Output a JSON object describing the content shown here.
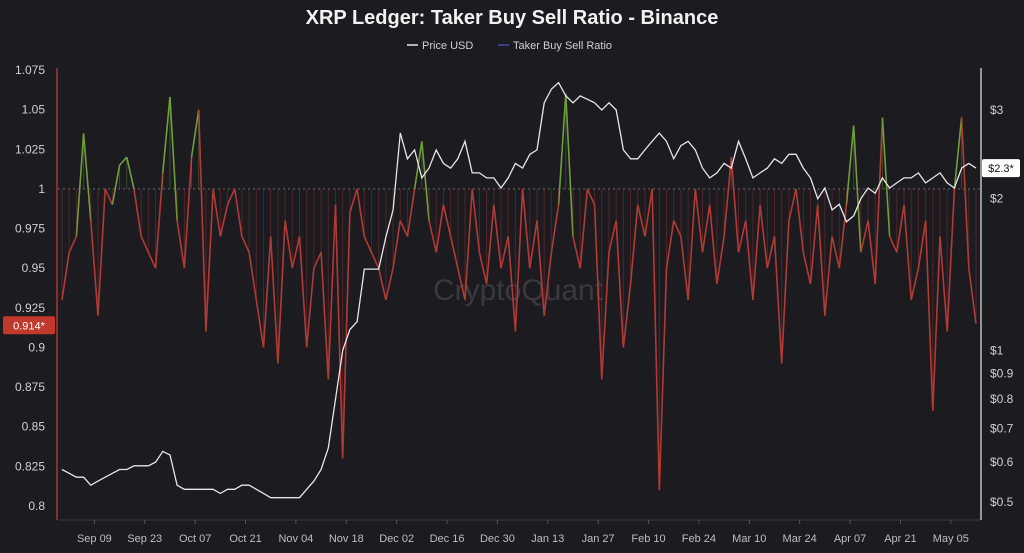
{
  "chart_data": {
    "type": "line",
    "title": "XRP Ledger: Taker Buy Sell Ratio - Binance",
    "watermark": "CryptoQuant",
    "legend": {
      "placement": "top-center",
      "items": [
        "Price USD",
        "Taker Buy Sell Ratio"
      ]
    },
    "colors": {
      "price": "#e6e6ea",
      "ratio_legend": "#4a4aa8",
      "ratio_above": "#6f9e3a",
      "ratio_below": "#b23a35",
      "badge_left": "#c0392b",
      "baseline": "#6a6a72"
    },
    "x": [
      "2024-08-31",
      "2024-09-02",
      "2024-09-04",
      "2024-09-06",
      "2024-09-08",
      "2024-09-10",
      "2024-09-12",
      "2024-09-14",
      "2024-09-16",
      "2024-09-18",
      "2024-09-20",
      "2024-09-22",
      "2024-09-24",
      "2024-09-26",
      "2024-09-28",
      "2024-09-30",
      "2024-10-02",
      "2024-10-04",
      "2024-10-06",
      "2024-10-08",
      "2024-10-10",
      "2024-10-12",
      "2024-10-14",
      "2024-10-16",
      "2024-10-18",
      "2024-10-20",
      "2024-10-22",
      "2024-10-24",
      "2024-10-26",
      "2024-10-28",
      "2024-10-30",
      "2024-11-01",
      "2024-11-03",
      "2024-11-05",
      "2024-11-07",
      "2024-11-09",
      "2024-11-11",
      "2024-11-13",
      "2024-11-15",
      "2024-11-17",
      "2024-11-19",
      "2024-11-21",
      "2024-11-23",
      "2024-11-25",
      "2024-11-27",
      "2024-11-29",
      "2024-12-01",
      "2024-12-03",
      "2024-12-05",
      "2024-12-07",
      "2024-12-09",
      "2024-12-11",
      "2024-12-13",
      "2024-12-15",
      "2024-12-17",
      "2024-12-19",
      "2024-12-21",
      "2024-12-23",
      "2024-12-25",
      "2024-12-27",
      "2024-12-29",
      "2024-12-31",
      "2025-01-02",
      "2025-01-04",
      "2025-01-06",
      "2025-01-08",
      "2025-01-10",
      "2025-01-12",
      "2025-01-14",
      "2025-01-16",
      "2025-01-18",
      "2025-01-20",
      "2025-01-22",
      "2025-01-24",
      "2025-01-26",
      "2025-01-28",
      "2025-01-30",
      "2025-02-01",
      "2025-02-03",
      "2025-02-05",
      "2025-02-07",
      "2025-02-09",
      "2025-02-11",
      "2025-02-13",
      "2025-02-15",
      "2025-02-17",
      "2025-02-19",
      "2025-02-21",
      "2025-02-23",
      "2025-02-25",
      "2025-02-27",
      "2025-03-01",
      "2025-03-03",
      "2025-03-05",
      "2025-03-07",
      "2025-03-09",
      "2025-03-11",
      "2025-03-13",
      "2025-03-15",
      "2025-03-17",
      "2025-03-19",
      "2025-03-21",
      "2025-03-23",
      "2025-03-25",
      "2025-03-27",
      "2025-03-29",
      "2025-03-31",
      "2025-04-02",
      "2025-04-04",
      "2025-04-06",
      "2025-04-08",
      "2025-04-10",
      "2025-04-12",
      "2025-04-14",
      "2025-04-16",
      "2025-04-18",
      "2025-04-20",
      "2025-04-22",
      "2025-04-24",
      "2025-04-26",
      "2025-04-28",
      "2025-04-30",
      "2025-05-02",
      "2025-05-04",
      "2025-05-06",
      "2025-05-08",
      "2025-05-10",
      "2025-05-12"
    ],
    "series": [
      {
        "name": "Taker Buy Sell Ratio",
        "axis": "left",
        "values": [
          0.93,
          0.96,
          0.97,
          1.035,
          0.98,
          0.92,
          1.0,
          0.99,
          1.015,
          1.02,
          1.0,
          0.97,
          0.96,
          0.95,
          1.01,
          1.058,
          0.98,
          0.95,
          1.02,
          1.05,
          0.91,
          1.0,
          0.97,
          0.99,
          1.0,
          0.97,
          0.96,
          0.93,
          0.9,
          0.97,
          0.89,
          0.98,
          0.95,
          0.97,
          0.9,
          0.95,
          0.96,
          0.88,
          0.99,
          0.83,
          0.985,
          1.0,
          0.97,
          0.96,
          0.95,
          0.93,
          0.95,
          0.98,
          0.97,
          1.0,
          1.03,
          0.98,
          0.96,
          0.99,
          0.97,
          0.95,
          0.93,
          1.0,
          0.96,
          0.94,
          0.99,
          0.95,
          0.97,
          0.91,
          1.0,
          0.95,
          0.98,
          0.92,
          0.96,
          0.99,
          1.06,
          0.97,
          0.95,
          1.0,
          0.99,
          0.88,
          0.96,
          0.98,
          0.9,
          0.94,
          0.99,
          0.97,
          1.0,
          0.81,
          0.95,
          0.98,
          0.97,
          0.93,
          1.0,
          0.96,
          0.99,
          0.94,
          0.97,
          1.02,
          0.96,
          0.98,
          0.93,
          0.99,
          0.95,
          0.97,
          0.89,
          0.98,
          1.0,
          0.96,
          0.94,
          0.99,
          0.92,
          0.97,
          0.95,
          0.99,
          1.04,
          0.96,
          0.98,
          0.94,
          1.045,
          0.97,
          0.96,
          0.99,
          0.93,
          0.95,
          0.98,
          0.86,
          0.97,
          0.91,
          1.0,
          1.045,
          0.95,
          0.915
        ]
      },
      {
        "name": "Price USD",
        "axis": "right",
        "values": [
          0.58,
          0.57,
          0.56,
          0.56,
          0.54,
          0.55,
          0.56,
          0.57,
          0.58,
          0.58,
          0.59,
          0.59,
          0.59,
          0.6,
          0.63,
          0.62,
          0.54,
          0.53,
          0.53,
          0.53,
          0.53,
          0.53,
          0.52,
          0.53,
          0.53,
          0.54,
          0.54,
          0.53,
          0.52,
          0.51,
          0.51,
          0.51,
          0.51,
          0.51,
          0.53,
          0.55,
          0.58,
          0.64,
          0.8,
          1.0,
          1.1,
          1.14,
          1.45,
          1.45,
          1.45,
          1.68,
          1.9,
          2.7,
          2.4,
          2.5,
          2.2,
          2.3,
          2.5,
          2.35,
          2.3,
          2.4,
          2.6,
          2.25,
          2.25,
          2.2,
          2.2,
          2.1,
          2.2,
          2.35,
          2.3,
          2.45,
          2.5,
          3.1,
          3.3,
          3.4,
          3.2,
          3.1,
          3.2,
          3.15,
          3.1,
          3.0,
          3.1,
          3.0,
          2.5,
          2.4,
          2.4,
          2.5,
          2.6,
          2.7,
          2.6,
          2.4,
          2.55,
          2.6,
          2.5,
          2.3,
          2.2,
          2.25,
          2.35,
          2.3,
          2.6,
          2.4,
          2.2,
          2.25,
          2.3,
          2.4,
          2.35,
          2.45,
          2.45,
          2.3,
          2.2,
          2.0,
          2.1,
          1.9,
          1.95,
          1.8,
          1.85,
          2.0,
          2.1,
          2.05,
          2.2,
          2.1,
          2.15,
          2.2,
          2.2,
          2.25,
          2.15,
          2.2,
          2.25,
          2.15,
          2.1,
          2.3,
          2.35,
          2.3
        ]
      }
    ],
    "left_axis": {
      "ylim": [
        0.8,
        1.075
      ],
      "ticks": [
        "0.8",
        "0.825",
        "0.85",
        "0.875",
        "0.9",
        "0.925",
        "0.95",
        "0.975",
        "1",
        "1.025",
        "1.05",
        "1.075"
      ],
      "baseline": 1
    },
    "right_axis": {
      "scale": "log",
      "ticks": [
        "$0.5",
        "$0.6",
        "$0.7",
        "$0.8",
        "$0.9",
        "$1",
        "$2",
        "$3"
      ]
    },
    "x_ticks": [
      {
        "label": "Sep 09",
        "date": "2024-09-09"
      },
      {
        "label": "Sep 23",
        "date": "2024-09-23"
      },
      {
        "label": "Oct 07",
        "date": "2024-10-07"
      },
      {
        "label": "Oct 21",
        "date": "2024-10-21"
      },
      {
        "label": "Nov 04",
        "date": "2024-11-04"
      },
      {
        "label": "Nov 18",
        "date": "2024-11-18"
      },
      {
        "label": "Dec 02",
        "date": "2024-12-02"
      },
      {
        "label": "Dec 16",
        "date": "2024-12-16"
      },
      {
        "label": "Dec 30",
        "date": "2024-12-30"
      },
      {
        "label": "Jan 13",
        "date": "2025-01-13"
      },
      {
        "label": "Jan 27",
        "date": "2025-01-27"
      },
      {
        "label": "Feb 10",
        "date": "2025-02-10"
      },
      {
        "label": "Feb 24",
        "date": "2025-02-24"
      },
      {
        "label": "Mar 10",
        "date": "2025-03-10"
      },
      {
        "label": "Mar 24",
        "date": "2025-03-24"
      },
      {
        "label": "Apr 07",
        "date": "2025-04-07"
      },
      {
        "label": "Apr 21",
        "date": "2025-04-21"
      },
      {
        "label": "May 05",
        "date": "2025-05-05"
      }
    ],
    "grid": false,
    "current_values": {
      "ratio_label": "0.914*",
      "price_label": "$2.3*"
    }
  }
}
